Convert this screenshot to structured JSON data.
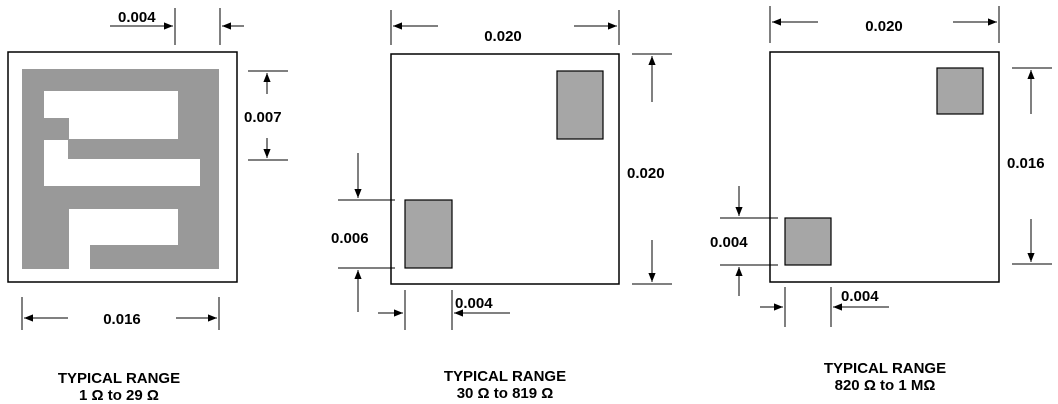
{
  "chips": [
    {
      "dimensions": {
        "top": "0.004",
        "right": "0.007",
        "bottom": "0.016"
      },
      "caption": {
        "line1": "TYPICAL RANGE",
        "line2": "1 Ω to 29 Ω"
      }
    },
    {
      "dimensions": {
        "top": "0.020",
        "right": "0.020",
        "left": "0.006",
        "bottom": "0.004"
      },
      "caption": {
        "line1": "TYPICAL RANGE",
        "line2": "30 Ω to 819 Ω"
      }
    },
    {
      "dimensions": {
        "top": "0.020",
        "right": "0.016",
        "left": "0.004",
        "bottom": "0.004"
      },
      "caption": {
        "line1": "TYPICAL RANGE",
        "line2": "820 Ω to 1 MΩ"
      }
    }
  ],
  "colors": {
    "pad": "#a6a6a6",
    "trace": "#999999",
    "line": "#000000"
  }
}
